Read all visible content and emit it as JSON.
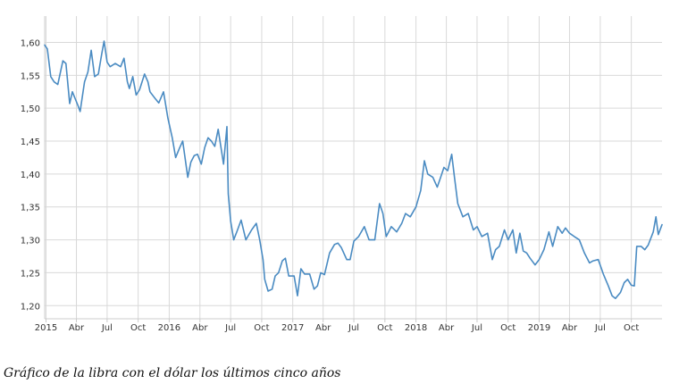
{
  "caption": "Gráfico de la libra con el dólar los últimos cinco años",
  "chart_data": {
    "type": "line",
    "title": "",
    "xlabel": "",
    "ylabel": "",
    "x_range": [
      "2014-12-28",
      "2019-12-31"
    ],
    "ylim": [
      1.18,
      1.64
    ],
    "y_ticks": [
      "1,20",
      "1,25",
      "1,30",
      "1,35",
      "1,40",
      "1,45",
      "1,50",
      "1,55",
      "1,60"
    ],
    "x_ticks": [
      {
        "label": "2015",
        "date": "2015-01-01"
      },
      {
        "label": "Abr",
        "date": "2015-04-01"
      },
      {
        "label": "Jul",
        "date": "2015-07-01"
      },
      {
        "label": "Oct",
        "date": "2015-10-01"
      },
      {
        "label": "2016",
        "date": "2016-01-01"
      },
      {
        "label": "Abr",
        "date": "2016-04-01"
      },
      {
        "label": "Jul",
        "date": "2016-07-01"
      },
      {
        "label": "Oct",
        "date": "2016-10-01"
      },
      {
        "label": "2017",
        "date": "2017-01-01"
      },
      {
        "label": "Abr",
        "date": "2017-04-01"
      },
      {
        "label": "Jul",
        "date": "2017-07-01"
      },
      {
        "label": "Oct",
        "date": "2017-10-01"
      },
      {
        "label": "2018",
        "date": "2018-01-01"
      },
      {
        "label": "Abr",
        "date": "2018-04-01"
      },
      {
        "label": "Jul",
        "date": "2018-07-01"
      },
      {
        "label": "Oct",
        "date": "2018-10-01"
      },
      {
        "label": "2019",
        "date": "2019-01-01"
      },
      {
        "label": "Abr",
        "date": "2019-04-01"
      },
      {
        "label": "Jul",
        "date": "2019-07-01"
      },
      {
        "label": "Oct",
        "date": "2019-10-01"
      }
    ],
    "grid": true,
    "line_color": "#4a8bc2",
    "grid_color": "#d9d9d9",
    "axis_color": "#cccccc",
    "series": [
      {
        "values": [
          [
            "2014-12-28",
            1.596
          ],
          [
            "2015-01-05",
            1.59
          ],
          [
            "2015-01-15",
            1.548
          ],
          [
            "2015-01-25",
            1.54
          ],
          [
            "2015-02-05",
            1.536
          ],
          [
            "2015-02-20",
            1.572
          ],
          [
            "2015-03-01",
            1.568
          ],
          [
            "2015-03-12",
            1.507
          ],
          [
            "2015-03-20",
            1.525
          ],
          [
            "2015-04-05",
            1.505
          ],
          [
            "2015-04-12",
            1.495
          ],
          [
            "2015-04-25",
            1.54
          ],
          [
            "2015-05-05",
            1.555
          ],
          [
            "2015-05-15",
            1.588
          ],
          [
            "2015-05-25",
            1.548
          ],
          [
            "2015-06-05",
            1.552
          ],
          [
            "2015-06-15",
            1.582
          ],
          [
            "2015-06-22",
            1.602
          ],
          [
            "2015-07-01",
            1.57
          ],
          [
            "2015-07-10",
            1.563
          ],
          [
            "2015-07-25",
            1.568
          ],
          [
            "2015-08-10",
            1.563
          ],
          [
            "2015-08-20",
            1.576
          ],
          [
            "2015-08-30",
            1.54
          ],
          [
            "2015-09-05",
            1.53
          ],
          [
            "2015-09-15",
            1.548
          ],
          [
            "2015-09-25",
            1.52
          ],
          [
            "2015-10-05",
            1.528
          ],
          [
            "2015-10-20",
            1.552
          ],
          [
            "2015-10-30",
            1.54
          ],
          [
            "2015-11-05",
            1.525
          ],
          [
            "2015-11-20",
            1.515
          ],
          [
            "2015-12-01",
            1.508
          ],
          [
            "2015-12-15",
            1.525
          ],
          [
            "2015-12-28",
            1.485
          ],
          [
            "2016-01-10",
            1.455
          ],
          [
            "2016-01-20",
            1.425
          ],
          [
            "2016-02-01",
            1.44
          ],
          [
            "2016-02-10",
            1.45
          ],
          [
            "2016-02-25",
            1.395
          ],
          [
            "2016-03-05",
            1.418
          ],
          [
            "2016-03-15",
            1.428
          ],
          [
            "2016-03-25",
            1.43
          ],
          [
            "2016-04-05",
            1.415
          ],
          [
            "2016-04-15",
            1.44
          ],
          [
            "2016-04-25",
            1.455
          ],
          [
            "2016-05-05",
            1.45
          ],
          [
            "2016-05-15",
            1.442
          ],
          [
            "2016-05-25",
            1.468
          ],
          [
            "2016-06-10",
            1.415
          ],
          [
            "2016-06-20",
            1.472
          ],
          [
            "2016-06-24",
            1.37
          ],
          [
            "2016-07-01",
            1.328
          ],
          [
            "2016-07-10",
            1.3
          ],
          [
            "2016-07-20",
            1.313
          ],
          [
            "2016-08-01",
            1.33
          ],
          [
            "2016-08-15",
            1.3
          ],
          [
            "2016-09-01",
            1.315
          ],
          [
            "2016-09-15",
            1.325
          ],
          [
            "2016-09-25",
            1.3
          ],
          [
            "2016-10-05",
            1.27
          ],
          [
            "2016-10-10",
            1.24
          ],
          [
            "2016-10-20",
            1.222
          ],
          [
            "2016-11-01",
            1.225
          ],
          [
            "2016-11-10",
            1.245
          ],
          [
            "2016-11-20",
            1.25
          ],
          [
            "2016-12-01",
            1.268
          ],
          [
            "2016-12-10",
            1.272
          ],
          [
            "2016-12-20",
            1.245
          ],
          [
            "2017-01-05",
            1.245
          ],
          [
            "2017-01-15",
            1.215
          ],
          [
            "2017-01-25",
            1.256
          ],
          [
            "2017-02-05",
            1.248
          ],
          [
            "2017-02-20",
            1.248
          ],
          [
            "2017-03-05",
            1.225
          ],
          [
            "2017-03-15",
            1.23
          ],
          [
            "2017-03-25",
            1.25
          ],
          [
            "2017-04-05",
            1.247
          ],
          [
            "2017-04-20",
            1.28
          ],
          [
            "2017-05-05",
            1.293
          ],
          [
            "2017-05-15",
            1.295
          ],
          [
            "2017-05-25",
            1.288
          ],
          [
            "2017-06-10",
            1.27
          ],
          [
            "2017-06-20",
            1.27
          ],
          [
            "2017-07-01",
            1.298
          ],
          [
            "2017-07-15",
            1.305
          ],
          [
            "2017-08-01",
            1.32
          ],
          [
            "2017-08-15",
            1.3
          ],
          [
            "2017-09-01",
            1.3
          ],
          [
            "2017-09-15",
            1.355
          ],
          [
            "2017-09-25",
            1.34
          ],
          [
            "2017-10-05",
            1.305
          ],
          [
            "2017-10-20",
            1.32
          ],
          [
            "2017-11-05",
            1.312
          ],
          [
            "2017-11-20",
            1.325
          ],
          [
            "2017-12-01",
            1.34
          ],
          [
            "2017-12-15",
            1.335
          ],
          [
            "2018-01-01",
            1.35
          ],
          [
            "2018-01-15",
            1.375
          ],
          [
            "2018-01-26",
            1.42
          ],
          [
            "2018-02-05",
            1.4
          ],
          [
            "2018-02-20",
            1.395
          ],
          [
            "2018-03-05",
            1.38
          ],
          [
            "2018-03-15",
            1.395
          ],
          [
            "2018-03-25",
            1.41
          ],
          [
            "2018-04-05",
            1.405
          ],
          [
            "2018-04-17",
            1.43
          ],
          [
            "2018-04-25",
            1.395
          ],
          [
            "2018-05-05",
            1.355
          ],
          [
            "2018-05-20",
            1.335
          ],
          [
            "2018-06-05",
            1.34
          ],
          [
            "2018-06-20",
            1.315
          ],
          [
            "2018-07-01",
            1.32
          ],
          [
            "2018-07-15",
            1.305
          ],
          [
            "2018-08-01",
            1.31
          ],
          [
            "2018-08-15",
            1.27
          ],
          [
            "2018-08-25",
            1.285
          ],
          [
            "2018-09-05",
            1.29
          ],
          [
            "2018-09-20",
            1.315
          ],
          [
            "2018-10-01",
            1.3
          ],
          [
            "2018-10-15",
            1.315
          ],
          [
            "2018-10-25",
            1.28
          ],
          [
            "2018-11-05",
            1.31
          ],
          [
            "2018-11-15",
            1.283
          ],
          [
            "2018-11-25",
            1.28
          ],
          [
            "2018-12-05",
            1.272
          ],
          [
            "2018-12-20",
            1.262
          ],
          [
            "2019-01-01",
            1.27
          ],
          [
            "2019-01-15",
            1.285
          ],
          [
            "2019-01-30",
            1.312
          ],
          [
            "2019-02-10",
            1.29
          ],
          [
            "2019-02-25",
            1.32
          ],
          [
            "2019-03-10",
            1.31
          ],
          [
            "2019-03-20",
            1.318
          ],
          [
            "2019-04-01",
            1.31
          ],
          [
            "2019-04-15",
            1.305
          ],
          [
            "2019-04-30",
            1.3
          ],
          [
            "2019-05-15",
            1.28
          ],
          [
            "2019-05-30",
            1.265
          ],
          [
            "2019-06-10",
            1.268
          ],
          [
            "2019-06-25",
            1.27
          ],
          [
            "2019-07-10",
            1.248
          ],
          [
            "2019-07-25",
            1.23
          ],
          [
            "2019-08-05",
            1.215
          ],
          [
            "2019-08-15",
            1.211
          ],
          [
            "2019-08-30",
            1.22
          ],
          [
            "2019-09-10",
            1.235
          ],
          [
            "2019-09-20",
            1.24
          ],
          [
            "2019-10-01",
            1.231
          ],
          [
            "2019-10-10",
            1.23
          ],
          [
            "2019-10-17",
            1.29
          ],
          [
            "2019-10-30",
            1.29
          ],
          [
            "2019-11-10",
            1.285
          ],
          [
            "2019-11-20",
            1.292
          ],
          [
            "2019-12-05",
            1.312
          ],
          [
            "2019-12-13",
            1.335
          ],
          [
            "2019-12-20",
            1.308
          ],
          [
            "2019-12-31",
            1.323
          ]
        ]
      }
    ]
  }
}
